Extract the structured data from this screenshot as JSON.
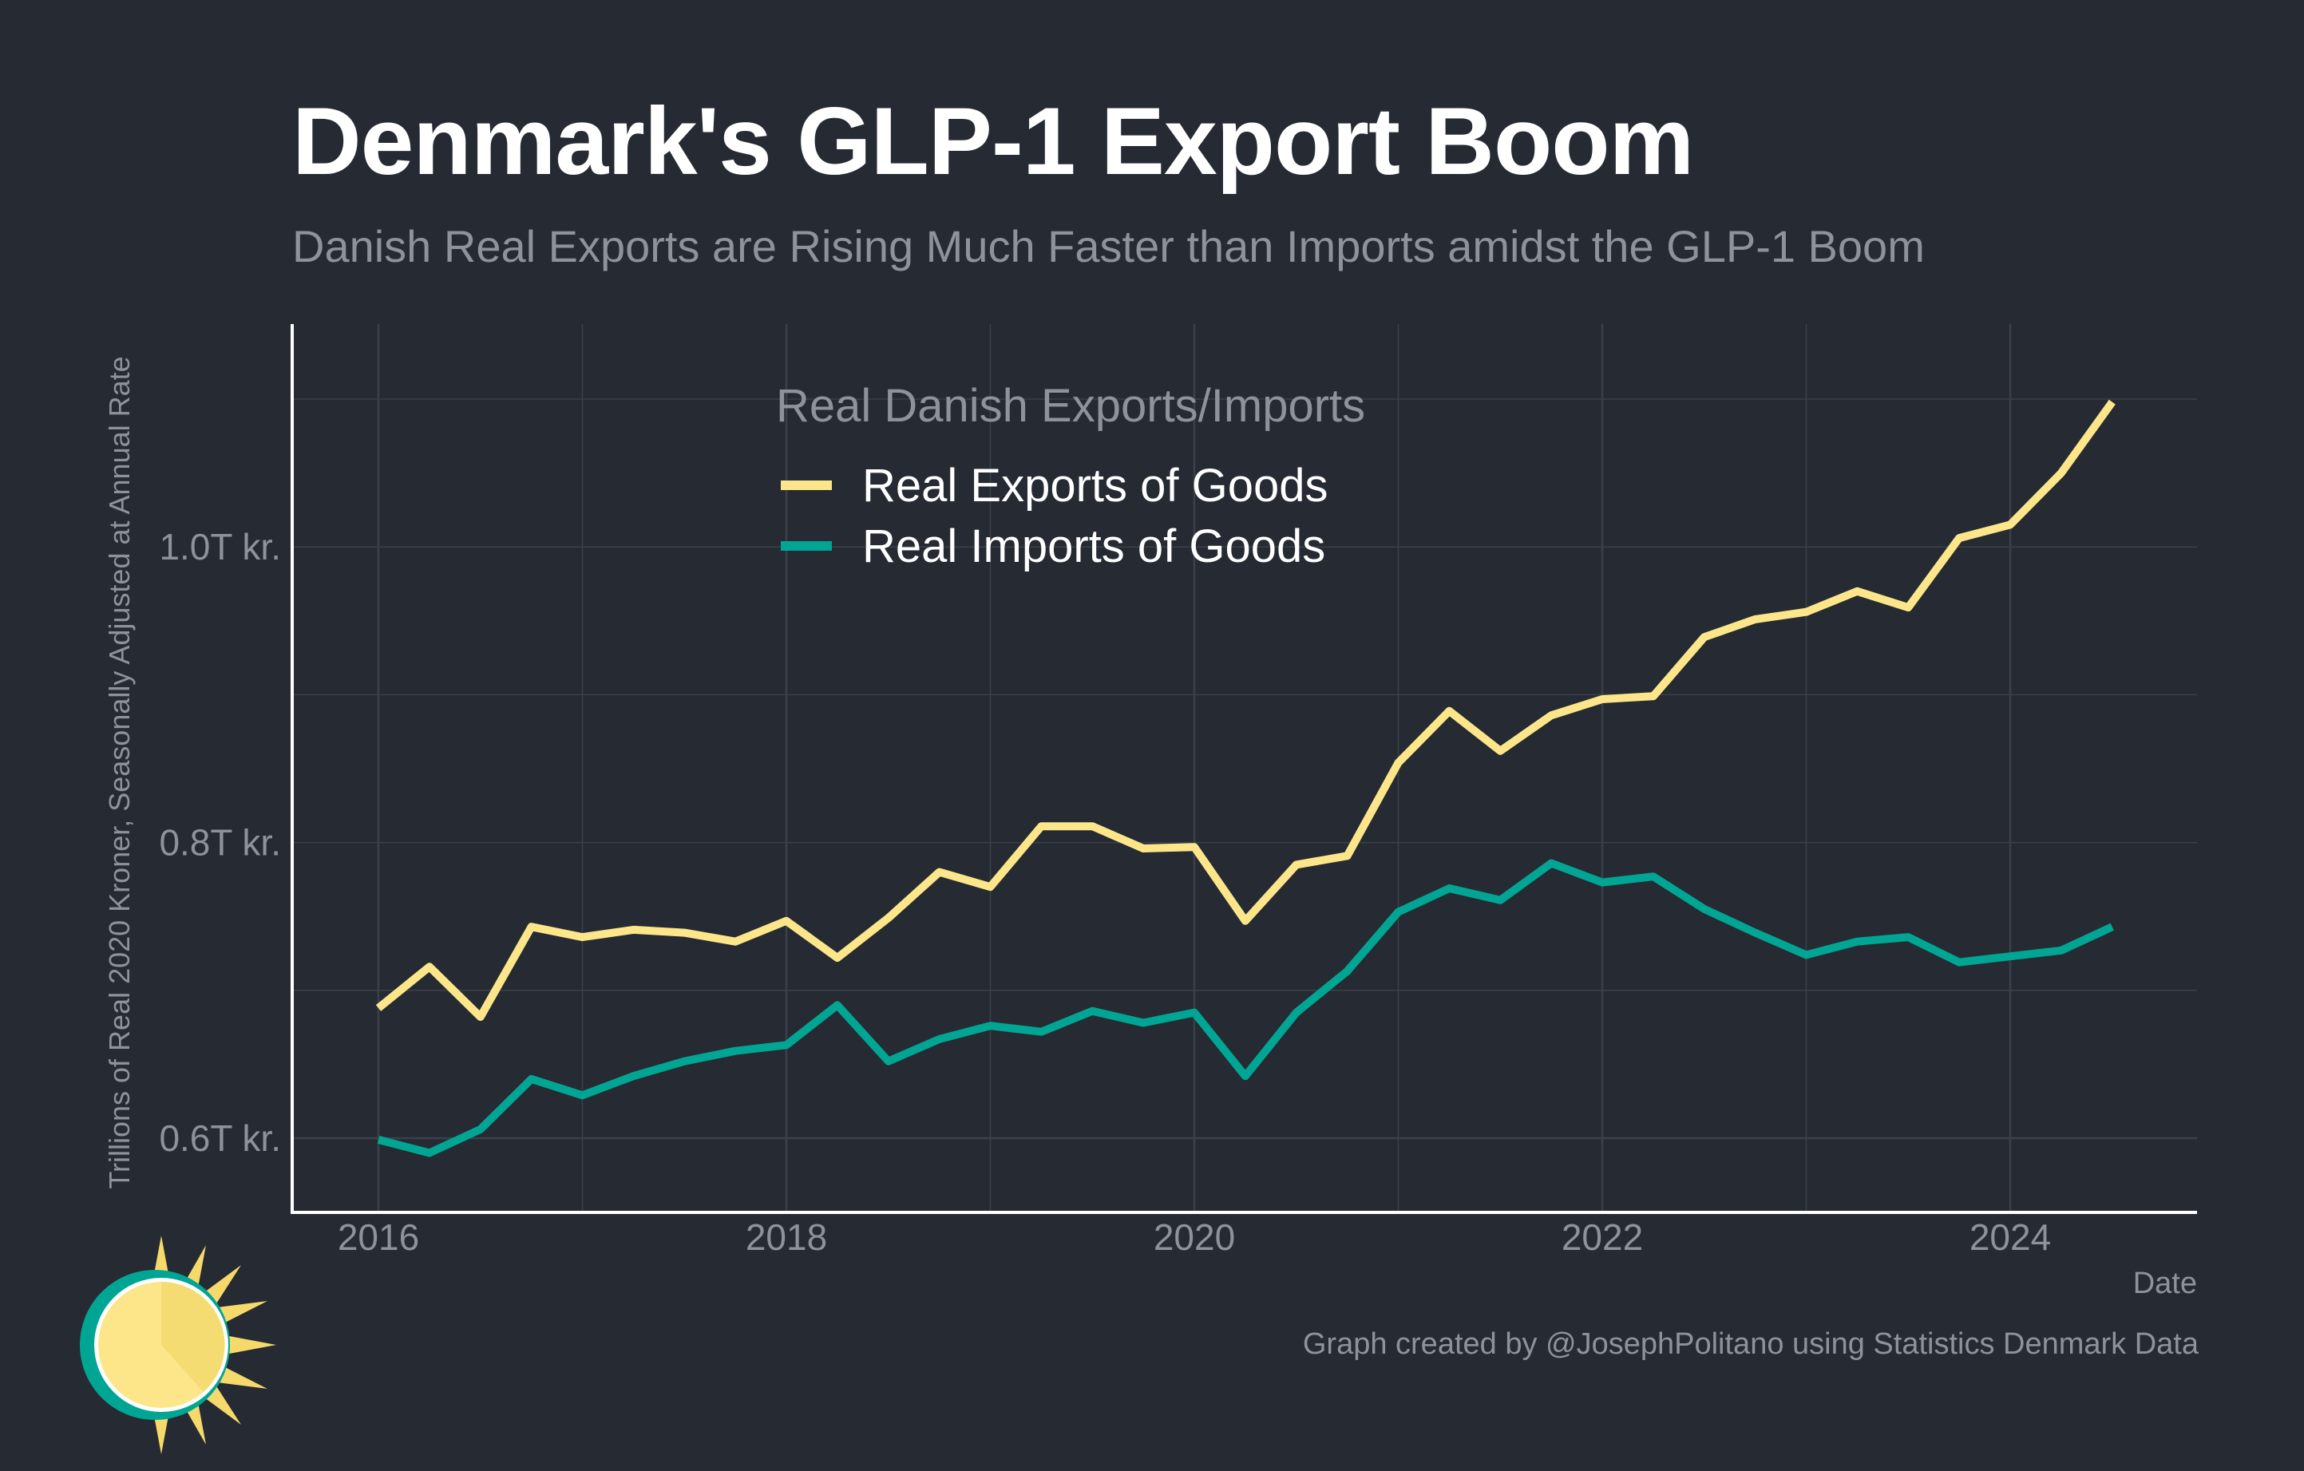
{
  "title": "Denmark's GLP-1 Export Boom",
  "subtitle": "Danish Real Exports are Rising Much Faster than Imports amidst the GLP-1 Boom",
  "caption": "Graph created by @JosephPolitano using Statistics Denmark Data",
  "logo_icon": "sun-logo-icon",
  "colors": {
    "background": "#252a33",
    "exports": "#fde68a",
    "imports": "#00a693",
    "grid": "#3b404a",
    "text_muted": "#8e929a"
  },
  "chart_data": {
    "type": "line",
    "xlabel": "Date",
    "ylabel": "Trillions of Real 2020 Kroner, Seasonally Adjusted at Annual Rate",
    "legend_title": "Real Danish Exports/Imports",
    "legend_position": "top-center",
    "grid": true,
    "xlim": [
      2015.58,
      2024.92
    ],
    "ylim": [
      0.55,
      1.15
    ],
    "x_ticks": [
      2016,
      2018,
      2020,
      2022,
      2024
    ],
    "x_tick_labels": [
      "2016",
      "2018",
      "2020",
      "2022",
      "2024"
    ],
    "y_ticks": [
      0.6,
      0.8,
      1.0
    ],
    "y_tick_labels": [
      "0.6T kr.",
      "0.8T kr.",
      "1.0T kr."
    ],
    "x": [
      2016.0,
      2016.25,
      2016.5,
      2016.75,
      2017.0,
      2017.25,
      2017.5,
      2017.75,
      2018.0,
      2018.25,
      2018.5,
      2018.75,
      2019.0,
      2019.25,
      2019.5,
      2019.75,
      2020.0,
      2020.25,
      2020.5,
      2020.75,
      2021.0,
      2021.25,
      2021.5,
      2021.75,
      2022.0,
      2022.25,
      2022.5,
      2022.75,
      2023.0,
      2023.25,
      2023.5,
      2023.75,
      2024.0,
      2024.25,
      2024.5
    ],
    "series": [
      {
        "name": "Real Exports of Goods",
        "color": "#fde68a",
        "values": [
          0.688,
          0.716,
          0.682,
          0.743,
          0.736,
          0.741,
          0.739,
          0.733,
          0.747,
          0.722,
          0.749,
          0.78,
          0.77,
          0.811,
          0.811,
          0.796,
          0.797,
          0.747,
          0.785,
          0.791,
          0.854,
          0.889,
          0.862,
          0.886,
          0.897,
          0.899,
          0.939,
          0.951,
          0.956,
          0.97,
          0.959,
          1.006,
          1.015,
          1.05,
          1.098
        ]
      },
      {
        "name": "Real Imports of Goods",
        "color": "#00a693",
        "values": [
          0.599,
          0.59,
          0.606,
          0.64,
          0.629,
          0.642,
          0.652,
          0.659,
          0.663,
          0.69,
          0.652,
          0.667,
          0.676,
          0.672,
          0.686,
          0.678,
          0.685,
          0.642,
          0.685,
          0.713,
          0.753,
          0.769,
          0.761,
          0.786,
          0.773,
          0.777,
          0.755,
          0.739,
          0.724,
          0.733,
          0.736,
          0.719,
          0.723,
          0.727,
          0.743
        ]
      }
    ]
  }
}
